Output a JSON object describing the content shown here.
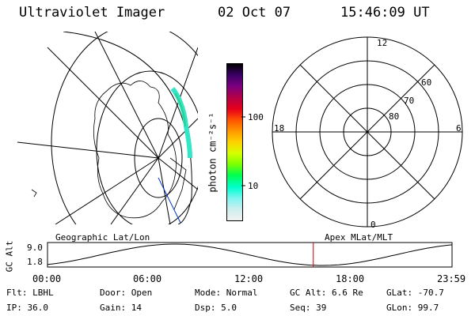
{
  "header": {
    "instrument": "Ultraviolet Imager",
    "date": "02 Oct 07",
    "time": "15:46:09 UT"
  },
  "colorbar": {
    "label_html": "photon cm⁻²s⁻¹",
    "ticks": [
      "100",
      "10"
    ],
    "colors": [
      "#000000",
      "#3a0066",
      "#7a0080",
      "#b0004a",
      "#e8001a",
      "#ff5500",
      "#ff9900",
      "#ffd200",
      "#d6ff00",
      "#7eff00",
      "#00ff4c",
      "#00ffd0",
      "#7ff5f0",
      "#cfeeee",
      "#f2f2f2"
    ]
  },
  "left_map": {
    "caption": "Geographic Lat/Lon"
  },
  "right_map": {
    "caption": "Apex MLat/MLT",
    "mlt_labels": {
      "top": "12",
      "left": "18",
      "right": "6",
      "bottom": "0"
    },
    "lat_labels": [
      "60",
      "70",
      "80"
    ]
  },
  "timeline": {
    "ylabel": "GC Alt",
    "ticks_y": [
      "9.0",
      "1.8"
    ],
    "ticks_x": [
      "00:00",
      "06:00",
      "12:00",
      "18:00",
      "23:59"
    ],
    "marker_hour": 15.77
  },
  "info": {
    "flt": "Flt: LBHL",
    "ip": "IP: 36.0",
    "door": "Door: Open",
    "gain": "Gain: 14",
    "mode": "Mode: Normal",
    "dsp": "Dsp:    5.0",
    "gcalt": "GC Alt: 6.6 Re",
    "seq": "Seq: 39",
    "glat": "GLat: -70.7",
    "glon": "GLon:  99.7"
  }
}
